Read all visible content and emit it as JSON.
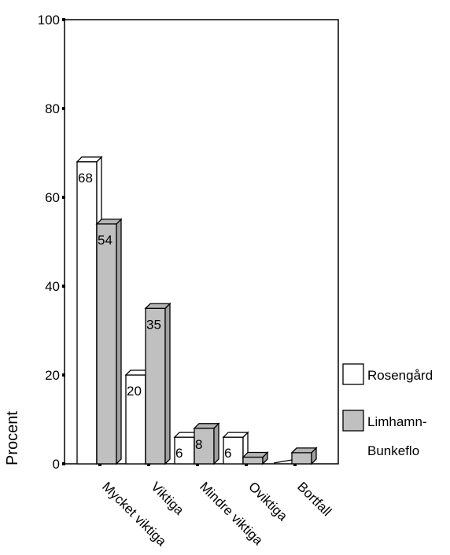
{
  "chart_data": {
    "type": "bar",
    "title": "",
    "xlabel": "",
    "ylabel": "Procent",
    "ylim": [
      0,
      100
    ],
    "yticks": [
      0,
      20,
      40,
      60,
      80,
      100
    ],
    "categories": [
      "Mycket viktiga",
      "Viktiga",
      "Mindre viktiga",
      "Oviktiga",
      "Bortfall"
    ],
    "series": [
      {
        "name": "Rosengård",
        "values": [
          68,
          20,
          6,
          6,
          0
        ],
        "labels": [
          "68",
          "20",
          "6",
          "6",
          ""
        ],
        "color": "#ffffff"
      },
      {
        "name": "Limhamn-Bunkeflo",
        "name_lines": [
          "Limhamn-",
          "Bunkeflo"
        ],
        "values": [
          54,
          35,
          8,
          1.5,
          2.5
        ],
        "labels": [
          "54",
          "35",
          "8",
          "",
          ""
        ],
        "color": "#c0c0c0"
      }
    ],
    "legend_position": "right",
    "grid": false,
    "style": "3d-bar"
  }
}
